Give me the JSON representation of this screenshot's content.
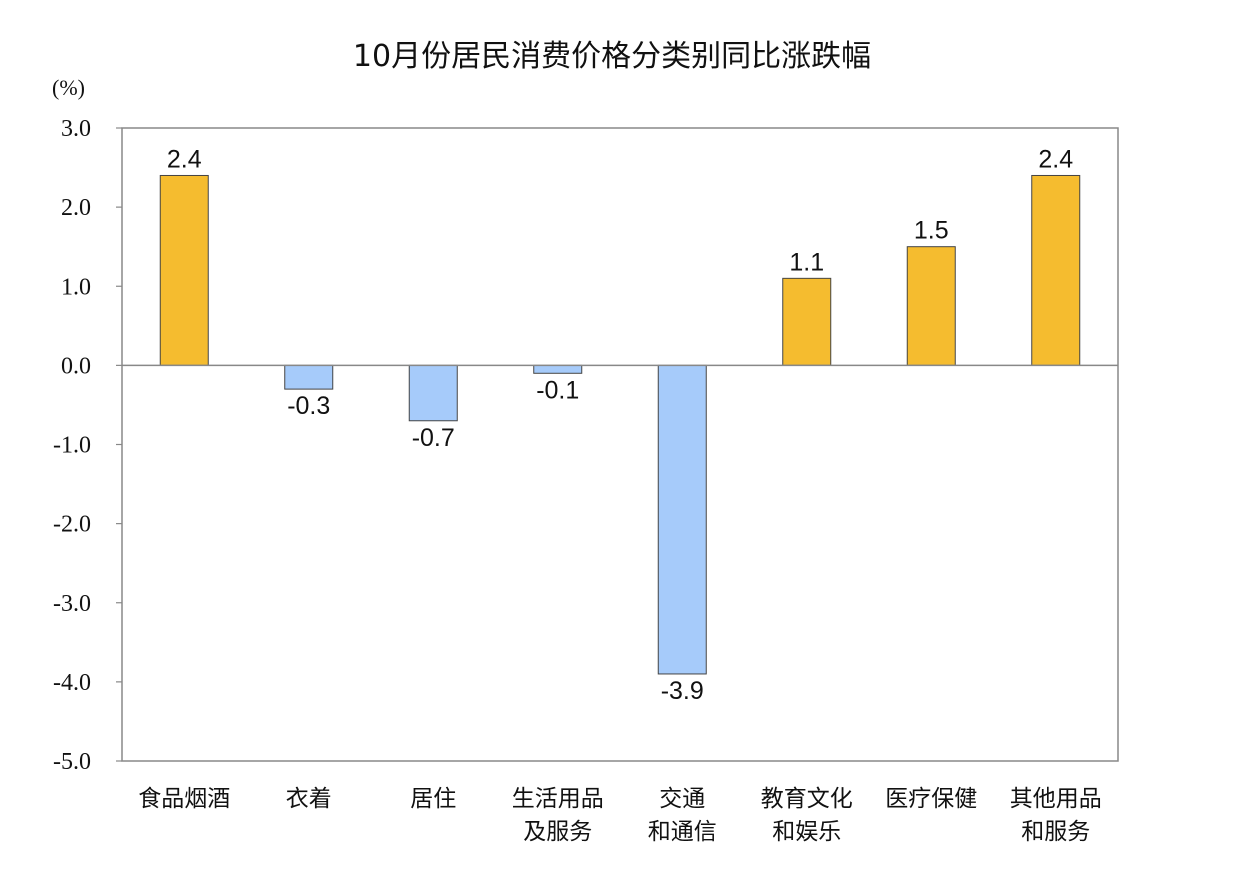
{
  "chart_data": {
    "type": "bar",
    "title": "10月份居民消费价格分类别同比涨跌幅",
    "ylabel": "(%)",
    "xlabel": "",
    "ylim": [
      -5.0,
      3.0
    ],
    "yticks": [
      "3.0",
      "2.0",
      "1.0",
      "0.0",
      "-1.0",
      "-2.0",
      "-3.0",
      "-4.0",
      "-5.0"
    ],
    "ytick_values": [
      3,
      2,
      1,
      0,
      -1,
      -2,
      -3,
      -4,
      -5
    ],
    "categories": [
      [
        "食品烟酒"
      ],
      [
        "衣着"
      ],
      [
        "居住"
      ],
      [
        "生活用品",
        "及服务"
      ],
      [
        "交通",
        "和通信"
      ],
      [
        "教育文化",
        "和娱乐"
      ],
      [
        "医疗保健"
      ],
      [
        "其他用品",
        "和服务"
      ]
    ],
    "values": [
      2.4,
      -0.3,
      -0.7,
      -0.1,
      -3.9,
      1.1,
      1.5,
      2.4
    ],
    "data_labels": [
      "2.4",
      "-0.3",
      "-0.7",
      "-0.1",
      "-3.9",
      "1.1",
      "1.5",
      "2.4"
    ],
    "colors": {
      "positive": "#F5BC2F",
      "negative": "#A6CBFA",
      "bar_stroke": "#444444",
      "axis": "#888888"
    },
    "grid": false,
    "legend": "none"
  }
}
